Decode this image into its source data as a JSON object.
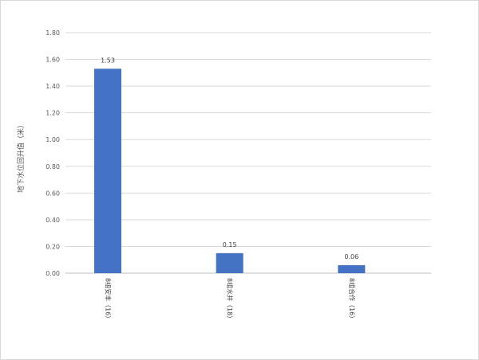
{
  "chart_data": {
    "type": "bar",
    "title": "",
    "xlabel": "",
    "ylabel": "地下水位回升值（米）",
    "categories": [
      "8组安丰（16）",
      "8组水井（18）",
      "8组合作（16）"
    ],
    "series": [
      {
        "values": [
          1.53,
          0.15,
          0.06
        ],
        "color": "#4472c4"
      }
    ],
    "data_labels": [
      "1.53",
      "0.15",
      "0.06"
    ],
    "ylim": [
      0,
      1.8
    ],
    "yticks": [
      0,
      0.2,
      0.4,
      0.6,
      0.8,
      1.0,
      1.2,
      1.4,
      1.6,
      1.8
    ],
    "ytick_labels": [
      "0.00",
      "0.20",
      "0.40",
      "0.60",
      "0.80",
      "1.00",
      "1.20",
      "1.40",
      "1.60",
      "1.80"
    ],
    "grid": true,
    "legend": "none"
  }
}
